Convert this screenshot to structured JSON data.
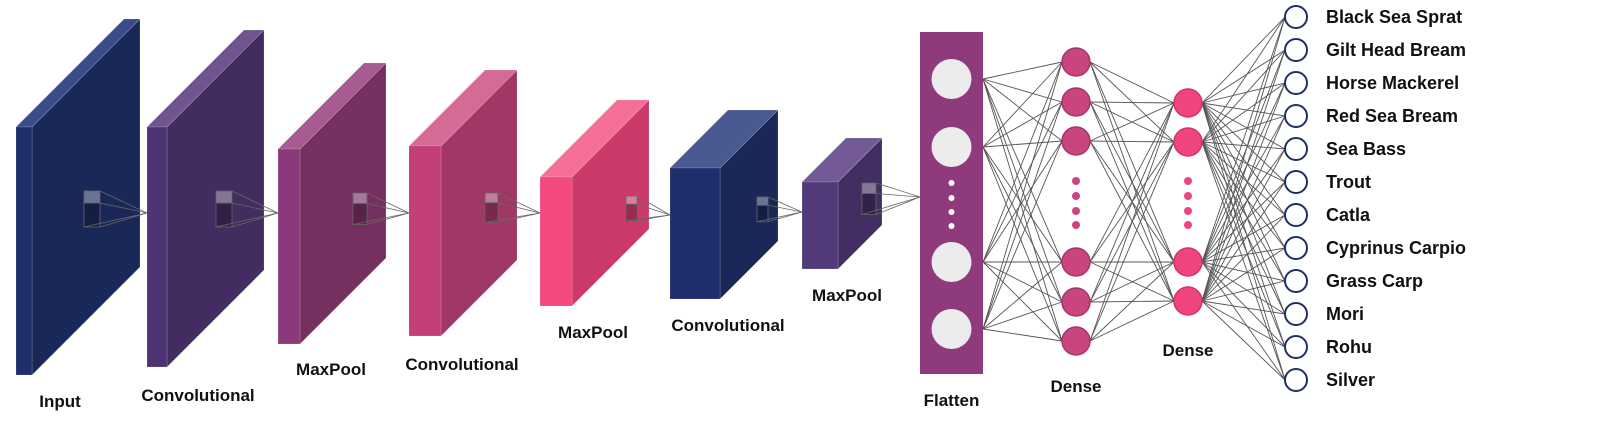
{
  "layers": [
    {
      "label": "Input",
      "front": "#1f2d6b",
      "side": "#1a2858",
      "top": "#3a4d8a"
    },
    {
      "label": "Convolutional",
      "front": "#4e3472",
      "side": "#432c5f",
      "top": "#6f5590"
    },
    {
      "label": "MaxPool",
      "front": "#8a3a7a",
      "side": "#74305f",
      "top": "#a65c92"
    },
    {
      "label": "Convolutional",
      "front": "#c23f78",
      "side": "#a03766",
      "top": "#d66a96"
    },
    {
      "label": "MaxPool",
      "front": "#f2497e",
      "side": "#cc3a6b",
      "top": "#f56e96"
    },
    {
      "label": "Convolutional",
      "front": "#1f2d6b",
      "side": "#1a2858",
      "top": "#4a5a90"
    },
    {
      "label": "MaxPool",
      "front": "#523a78",
      "side": "#422e62",
      "top": "#735a94"
    }
  ],
  "flatten": {
    "label": "Flatten",
    "color": "#8e3a7d",
    "node_color": "#ececec"
  },
  "dense1": {
    "label": "Dense",
    "color": "#c8457f",
    "stroke": "#a8356a"
  },
  "dense2": {
    "label": "Dense",
    "color": "#f0447e",
    "stroke": "#d23468"
  },
  "output": {
    "stroke": "#1f2d6b",
    "classes": [
      "Black Sea Sprat",
      "Gilt Head Bream",
      "Horse Mackerel",
      "Red Sea Bream",
      "Sea Bass",
      "Trout",
      "Catla",
      "Cyprinus Carpio",
      "Grass Carp",
      "Mori",
      "Rohu",
      "Silver"
    ]
  },
  "colors": {
    "edge": "#555555",
    "kernel": "#666666"
  }
}
